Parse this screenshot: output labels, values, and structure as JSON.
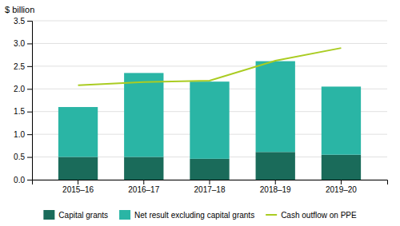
{
  "chart_data": {
    "type": "bar",
    "stacked": true,
    "ylabel": "$ billion",
    "categories": [
      "2015–16",
      "2016–17",
      "2017–18",
      "2018–19",
      "2019–20"
    ],
    "series": [
      {
        "name": "Capital grants",
        "color": "#1a6b5a",
        "values": [
          0.5,
          0.5,
          0.46,
          0.61,
          0.55
        ]
      },
      {
        "name": "Net result excluding capital grants",
        "color": "#2ab5a5",
        "values": [
          1.1,
          1.85,
          1.7,
          2.0,
          1.5
        ]
      },
      {
        "name": "Cash outflow on PPE",
        "type": "line",
        "color": "#aacc22",
        "values": [
          2.08,
          2.15,
          2.18,
          2.62,
          2.9
        ]
      }
    ],
    "ylim": [
      0,
      3.5
    ],
    "yticks": [
      {
        "value": 0,
        "label": "0.0"
      },
      0.5,
      {
        "value": 1,
        "label": "1.0"
      },
      1.5,
      {
        "value": 2,
        "label": "2.0"
      },
      2.5,
      {
        "value": 3,
        "label": "3.0"
      },
      3.5
    ],
    "grid": true,
    "legend": "bottom"
  }
}
